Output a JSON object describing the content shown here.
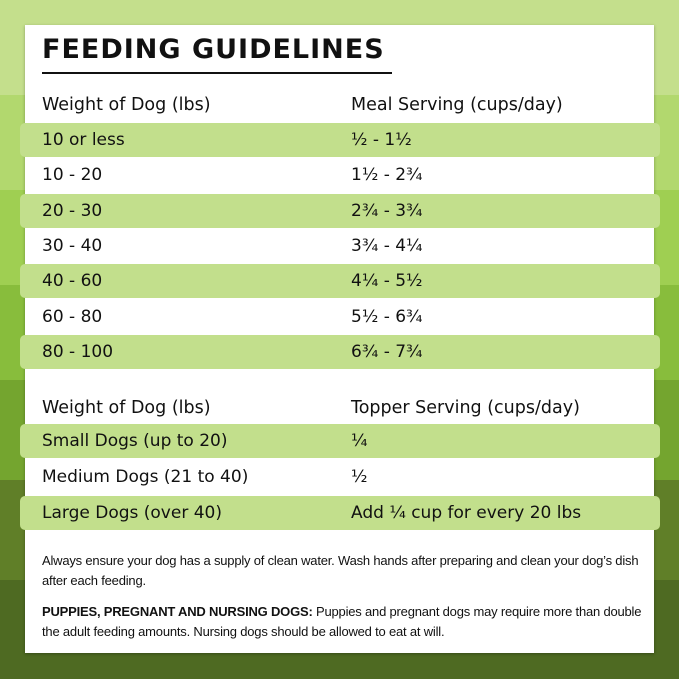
{
  "title": "FEEDING GUIDELINES",
  "meal": {
    "headers": [
      "Weight of Dog (lbs)",
      "Meal Serving (cups/day)"
    ],
    "rows": [
      [
        "10 or less",
        "½ - 1½"
      ],
      [
        "10 - 20",
        "1½ - 2¾"
      ],
      [
        "20 - 30",
        "2¾ - 3¾"
      ],
      [
        "30 - 40",
        "3¾ - 4¼"
      ],
      [
        "40 - 60",
        "4¼ - 5½"
      ],
      [
        "60 - 80",
        "5½ - 6¾"
      ],
      [
        "80 - 100",
        "6¾ - 7¾"
      ]
    ]
  },
  "topper": {
    "headers": [
      "Weight of Dog (lbs)",
      "Topper Serving (cups/day)"
    ],
    "rows": [
      [
        "Small Dogs (up to 20)",
        "¼"
      ],
      [
        "Medium Dogs (21 to 40)",
        "½"
      ],
      [
        "Large Dogs (over 40)",
        "Add ¼ cup for every 20 lbs"
      ]
    ]
  },
  "notes": {
    "water": "Always ensure your dog has a supply of clean water. Wash hands after preparing and clean your dog’s dish after each feeding.",
    "puppies_label": "PUPPIES, PREGNANT AND NURSING DOGS:",
    "puppies_text": " Puppies and pregnant dogs may require more than double the adult feeding amounts. Nursing dogs should be allowed to eat at will."
  },
  "colors": {
    "highlight": "#c2df8c",
    "dark_green": "#4e6a22"
  }
}
